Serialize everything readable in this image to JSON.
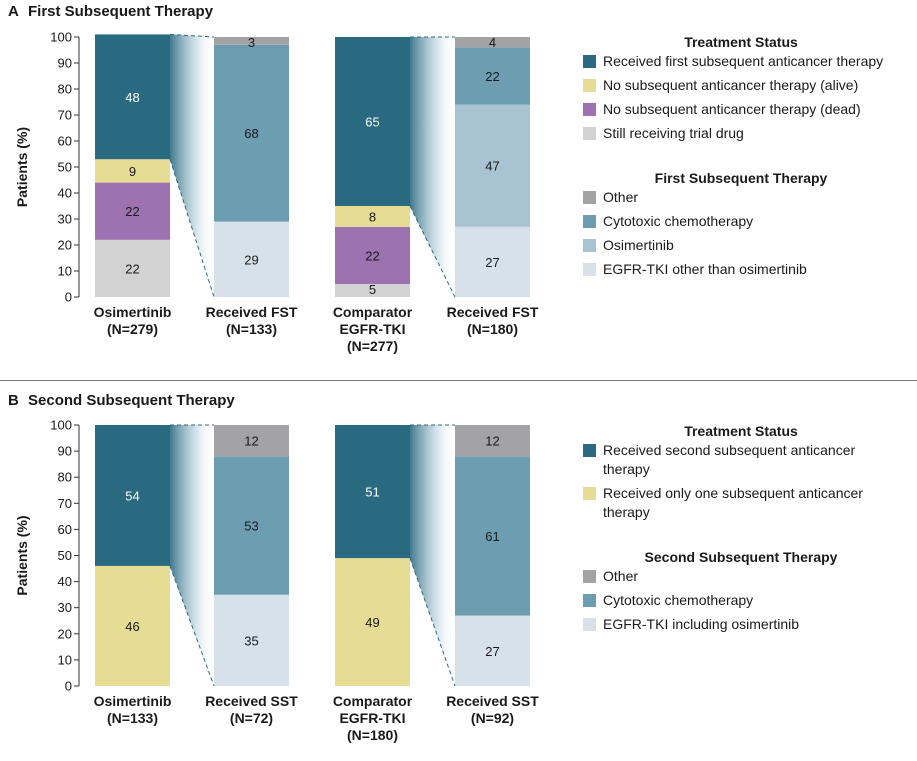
{
  "colors": {
    "received_first": "#2a6a80",
    "no_subsequent_alive": "#e6dc94",
    "no_subsequent_dead": "#9c72b0",
    "still_receiving": "#d2d2d2",
    "other": "#a3a3a6",
    "cytotoxic": "#6c9db0",
    "osimertinib": "#a8c4d2",
    "egfr_tki": "#d7e1ea"
  },
  "chart_data": [
    {
      "type": "bar",
      "panel_letter": "A",
      "title": "First Subsequent Therapy",
      "ylabel": "Patients (%)",
      "ylim": [
        0,
        100
      ],
      "yticks": [
        "0",
        "10",
        "20",
        "30",
        "40",
        "50",
        "60",
        "70",
        "80",
        "90",
        "100"
      ],
      "stacked": true,
      "bars": [
        {
          "label_lines": [
            "Osimertinib",
            "(N=279)"
          ],
          "segments": [
            {
              "key": "still_receiving",
              "value": 22,
              "label": "22"
            },
            {
              "key": "no_subsequent_dead",
              "value": 22,
              "label": "22"
            },
            {
              "key": "no_subsequent_alive",
              "value": 9,
              "label": "9"
            },
            {
              "key": "received_first",
              "value": 48,
              "label": "48"
            }
          ]
        },
        {
          "label_lines": [
            "Received FST",
            "(N=133)"
          ],
          "segments": [
            {
              "key": "egfr_tki",
              "value": 29,
              "label": "29"
            },
            {
              "key": "cytotoxic",
              "value": 68,
              "label": "68"
            },
            {
              "key": "other",
              "value": 3,
              "label": "3"
            }
          ]
        },
        {
          "label_lines": [
            "Comparator",
            "EGFR-TKI",
            "(N=277)"
          ],
          "segments": [
            {
              "key": "still_receiving",
              "value": 5,
              "label": "5"
            },
            {
              "key": "no_subsequent_dead",
              "value": 22,
              "label": "22"
            },
            {
              "key": "no_subsequent_alive",
              "value": 8,
              "label": "8"
            },
            {
              "key": "received_first",
              "value": 65,
              "label": "65"
            }
          ]
        },
        {
          "label_lines": [
            "Received FST",
            "(N=180)"
          ],
          "segments": [
            {
              "key": "egfr_tki",
              "value": 27,
              "label": "27"
            },
            {
              "key": "osimertinib",
              "value": 47,
              "label": "47"
            },
            {
              "key": "cytotoxic",
              "value": 22,
              "label": "22"
            },
            {
              "key": "other",
              "value": 4,
              "label": "4"
            }
          ]
        }
      ],
      "legend": [
        {
          "heading": "Treatment Status",
          "items": [
            {
              "key": "received_first",
              "text": [
                "Received first subsequent anticancer therapy"
              ]
            },
            {
              "key": "no_subsequent_alive",
              "text": [
                "No subsequent anticancer therapy (alive)"
              ]
            },
            {
              "key": "no_subsequent_dead",
              "text": [
                "No subsequent anticancer therapy (dead)"
              ]
            },
            {
              "key": "still_receiving",
              "text": [
                "Still receiving trial drug"
              ]
            }
          ]
        },
        {
          "heading": "First Subsequent Therapy",
          "items": [
            {
              "key": "other",
              "text": [
                "Other"
              ]
            },
            {
              "key": "cytotoxic",
              "text": [
                "Cytotoxic chemotherapy"
              ]
            },
            {
              "key": "osimertinib",
              "text": [
                "Osimertinib"
              ]
            },
            {
              "key": "egfr_tki",
              "text": [
                "EGFR-TKI other than osimertinib"
              ]
            }
          ]
        }
      ]
    },
    {
      "type": "bar",
      "panel_letter": "B",
      "title": "Second Subsequent Therapy",
      "ylabel": "Patients (%)",
      "ylim": [
        0,
        100
      ],
      "yticks": [
        "0",
        "10",
        "20",
        "30",
        "40",
        "50",
        "60",
        "70",
        "80",
        "90",
        "100"
      ],
      "stacked": true,
      "bars": [
        {
          "label_lines": [
            "Osimertinib",
            "(N=133)"
          ],
          "segments": [
            {
              "key": "no_subsequent_alive",
              "value": 46,
              "label": "46"
            },
            {
              "key": "received_first",
              "value": 54,
              "label": "54"
            }
          ]
        },
        {
          "label_lines": [
            "Received SST",
            "(N=72)"
          ],
          "segments": [
            {
              "key": "egfr_tki",
              "value": 35,
              "label": "35"
            },
            {
              "key": "cytotoxic",
              "value": 53,
              "label": "53"
            },
            {
              "key": "other",
              "value": 12,
              "label": "12"
            }
          ]
        },
        {
          "label_lines": [
            "Comparator",
            "EGFR-TKI",
            "(N=180)"
          ],
          "segments": [
            {
              "key": "no_subsequent_alive",
              "value": 49,
              "label": "49"
            },
            {
              "key": "received_first",
              "value": 51,
              "label": "51"
            }
          ]
        },
        {
          "label_lines": [
            "Received SST",
            "(N=92)"
          ],
          "segments": [
            {
              "key": "egfr_tki",
              "value": 27,
              "label": "27"
            },
            {
              "key": "cytotoxic",
              "value": 61,
              "label": "61"
            },
            {
              "key": "other",
              "value": 12,
              "label": "12"
            }
          ]
        }
      ],
      "legend": [
        {
          "heading": "Treatment Status",
          "items": [
            {
              "key": "received_first",
              "text": [
                "Received second subsequent anticancer",
                "therapy"
              ]
            },
            {
              "key": "no_subsequent_alive",
              "text": [
                "Received only one subsequent anticancer",
                "therapy"
              ]
            }
          ]
        },
        {
          "heading": "Second Subsequent Therapy",
          "items": [
            {
              "key": "other",
              "text": [
                "Other"
              ]
            },
            {
              "key": "cytotoxic",
              "text": [
                "Cytotoxic chemotherapy"
              ]
            },
            {
              "key": "egfr_tki",
              "text": [
                "EGFR-TKI including osimertinib"
              ]
            }
          ]
        }
      ]
    }
  ]
}
